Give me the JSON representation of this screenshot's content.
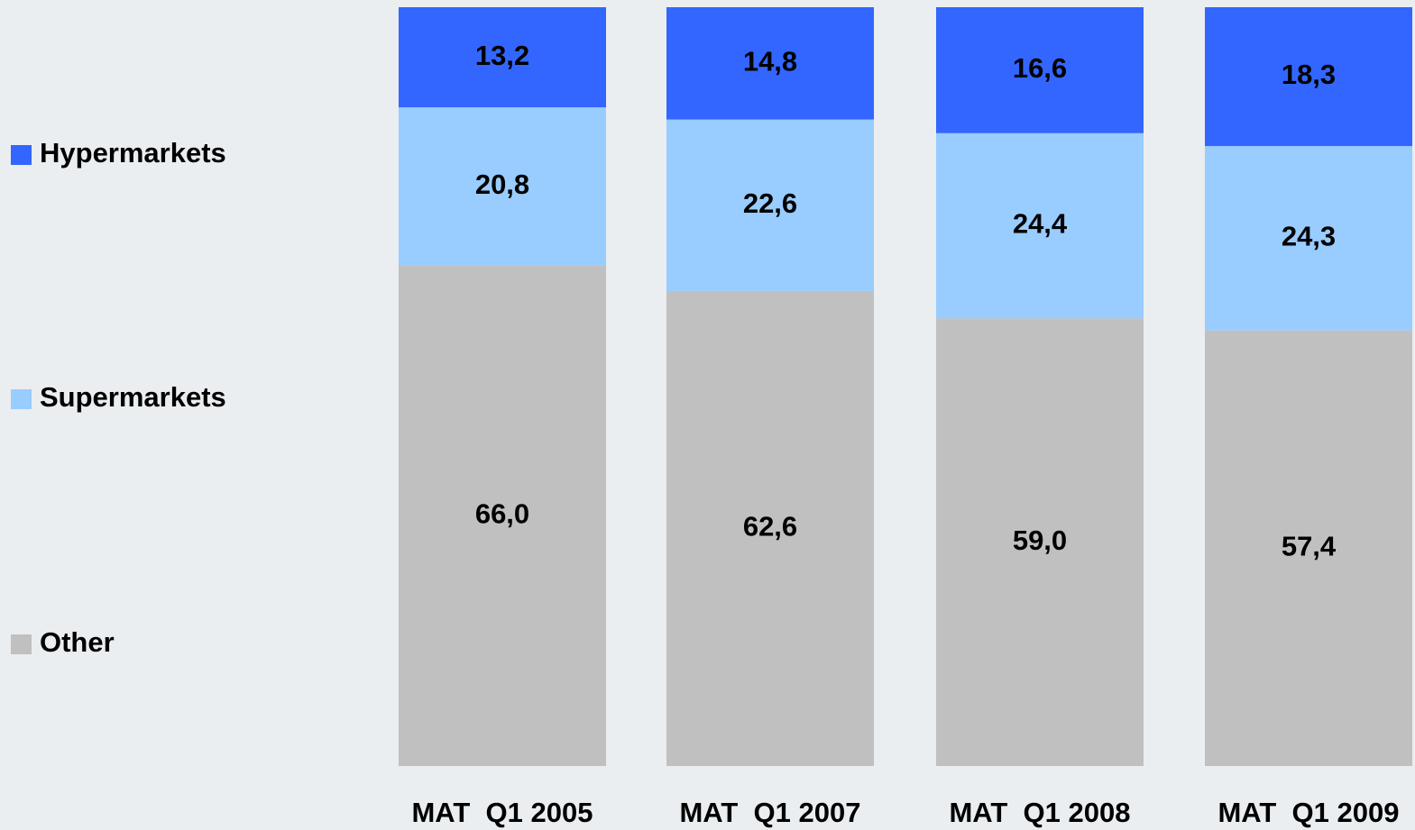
{
  "chart_data": {
    "type": "stacked_bar",
    "categories": [
      "MAT  Q1 2005",
      "MAT  Q1 2007",
      "MAT  Q1 2008",
      "MAT  Q1 2009"
    ],
    "series": [
      {
        "name": "Hypermarkets",
        "color": "#3366ff",
        "values": [
          13.2,
          14.8,
          16.6,
          18.3
        ],
        "value_labels": [
          "13,2",
          "14,8",
          "16,6",
          "18,3"
        ]
      },
      {
        "name": "Supermarkets",
        "color": "#99ccff",
        "values": [
          20.8,
          22.6,
          24.4,
          24.3
        ],
        "value_labels": [
          "20,8",
          "22,6",
          "24,4",
          "24,3"
        ]
      },
      {
        "name": "Other",
        "color": "#c0c0c0",
        "values": [
          66.0,
          62.6,
          59.0,
          57.4
        ],
        "value_labels": [
          "66,0",
          "62,6",
          "59,0",
          "57,4"
        ]
      }
    ],
    "ylim": [
      0,
      100
    ]
  }
}
